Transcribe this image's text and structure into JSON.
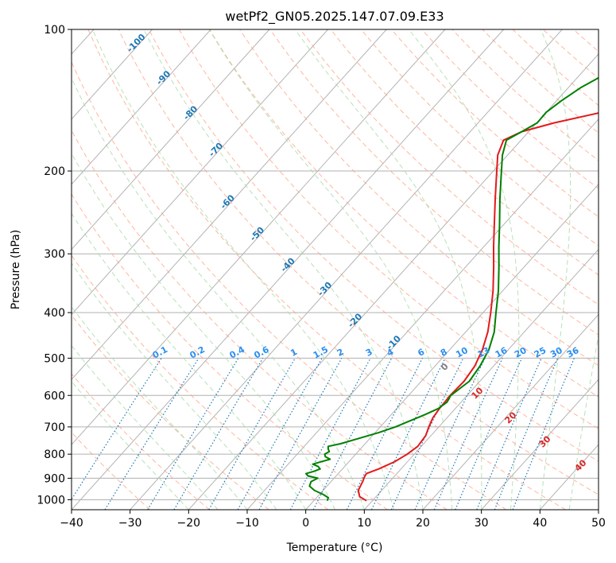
{
  "chart_data": {
    "type": "line",
    "subtype": "skew-t log-p diagram",
    "title": "wetPf2_GN05.2025.147.07.09.E33",
    "xlabel": "Temperature (°C)",
    "ylabel": "Pressure (hPa)",
    "xlim": [
      -40,
      50
    ],
    "ylim": [
      1050,
      100
    ],
    "yscale": "log",
    "grid": true,
    "x_ticks": [
      -40,
      -30,
      -20,
      -10,
      0,
      10,
      20,
      30,
      40,
      50
    ],
    "x_tick_labels": [
      "−40",
      "−30",
      "−20",
      "−10",
      "0",
      "10",
      "20",
      "30",
      "40",
      "50"
    ],
    "y_ticks": [
      1000,
      900,
      800,
      700,
      600,
      500,
      400,
      300,
      200,
      100
    ],
    "y_tick_labels": [
      "1000",
      "900",
      "800",
      "700",
      "600",
      "500",
      "400",
      "300",
      "200",
      "100"
    ],
    "series": [
      {
        "color": "#e31a1c",
        "pressure": [
          1005,
          985,
          955,
          915,
          895,
          880,
          860,
          830,
          800,
          770,
          730,
          700,
          670,
          640,
          620,
          600,
          560,
          520,
          480,
          440,
          400,
          360,
          320,
          290,
          260,
          230,
          205,
          185,
          172,
          165,
          158,
          150,
          142,
          133,
          125,
          118,
          112,
          106,
          100
        ],
        "temperature": [
          9,
          7.2,
          6,
          5.4,
          5,
          4.8,
          6.2,
          7.8,
          8.8,
          9.4,
          9.1,
          8.3,
          7.6,
          7.3,
          7.2,
          7.1,
          7.3,
          6.8,
          5.6,
          3.8,
          1.3,
          -1.6,
          -5.2,
          -8.3,
          -11.6,
          -15.3,
          -18.7,
          -21.7,
          -23,
          -21.2,
          -17,
          -10.5,
          -5.6,
          -2.2,
          1.2,
          3.5,
          5.3,
          7.3,
          8.6
        ]
      },
      {
        "color": "#008000",
        "pressure": [
          1005,
          990,
          975,
          955,
          935,
          915,
          900,
          890,
          880,
          870,
          860,
          850,
          840,
          830,
          820,
          810,
          800,
          790,
          780,
          770,
          760,
          740,
          720,
          700,
          680,
          660,
          640,
          620,
          600,
          560,
          520,
          480,
          440,
          400,
          360,
          320,
          290,
          260,
          230,
          205,
          185,
          172,
          165,
          158,
          150,
          142,
          133,
          125,
          118,
          112,
          106,
          100
        ],
        "temperature": [
          2.3,
          2,
          0.7,
          -1.5,
          -3,
          -3.4,
          -2.8,
          -4.8,
          -5.5,
          -4.5,
          -3.8,
          -4.5,
          -5.8,
          -4.7,
          -3.6,
          -4.8,
          -5.3,
          -4.9,
          -5.5,
          -5.9,
          -4.2,
          -1.8,
          0.6,
          2.6,
          4.1,
          5.7,
          7.1,
          7.6,
          7.2,
          8.2,
          7.7,
          6.7,
          4.9,
          2.2,
          -0.7,
          -4.3,
          -7.4,
          -10.7,
          -14.5,
          -17.9,
          -20.9,
          -22.5,
          -21.2,
          -19.9,
          -20,
          -19.2,
          -17.9,
          -15.9,
          -14.3,
          -13,
          -11.3,
          -9.8
        ]
      }
    ],
    "isotherm_labels": [
      "-100",
      "-90",
      "-80",
      "-70",
      "-60",
      "-50",
      "-40",
      "-30",
      "-20",
      "-10"
    ],
    "isotherm_values": [
      -100,
      -90,
      -80,
      -70,
      -60,
      -50,
      -40,
      -30,
      -20,
      -10
    ],
    "mixing_ratio_labels": [
      "0.1",
      "0.2",
      "0.4",
      "0.6",
      "1",
      "1.5",
      "2",
      "3",
      "4",
      "6",
      "8",
      "10",
      "13",
      "16",
      "20",
      "25",
      "30",
      "36"
    ],
    "mixing_ratio_values": [
      0.1,
      0.2,
      0.4,
      0.6,
      1,
      1.5,
      2,
      3,
      4,
      6,
      8,
      10,
      13,
      16,
      20,
      25,
      30,
      36
    ],
    "wet_adiabat_labels": [
      "0",
      "10",
      "20",
      "30",
      "40"
    ],
    "wet_adiabat_values": [
      0,
      10,
      20,
      30,
      40
    ],
    "colors": {
      "isotherm_line": "#b3b3b3",
      "isotherm_label": "#1f77b4",
      "dry_adiabat": "#ff9e80",
      "moist_adiabat": "#a6d9a6",
      "mixing_ratio_line": "#1f77b4",
      "mixing_ratio_label": "#2b8ff0",
      "wet_adiabat_label": "#d62728",
      "zero_label": "#7f7f7f",
      "tan_curve": "#d8c4a8"
    }
  }
}
